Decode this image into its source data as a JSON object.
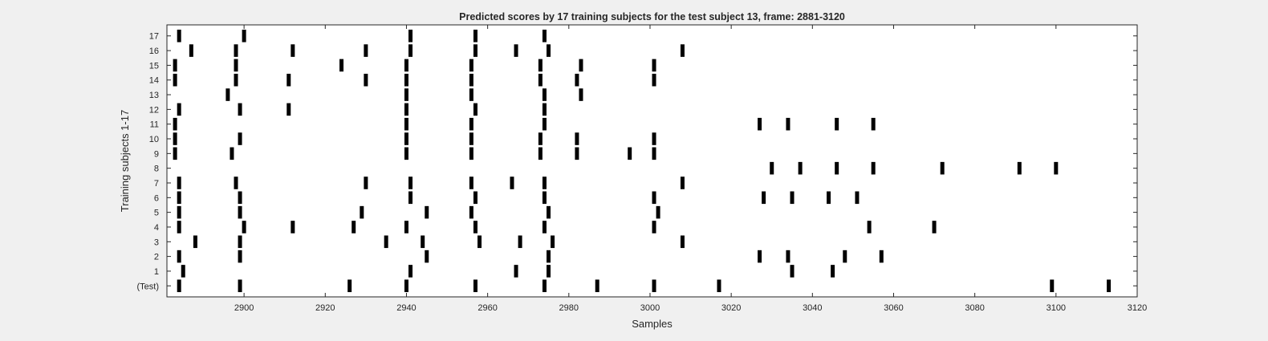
{
  "chart_data": {
    "type": "scatter",
    "marker": "vertical-bar",
    "title": "Predicted scores by 17 training subjects for the test subject 13, frame: 2881-3120",
    "xlabel": "Samples",
    "ylabel": "Training subjects 1-17",
    "xlim": [
      2881,
      3120
    ],
    "xticks": [
      2900,
      2920,
      2940,
      2960,
      2980,
      3000,
      3020,
      3040,
      3060,
      3080,
      3100,
      3120
    ],
    "ytick_labels": [
      "(Test)",
      "1",
      "2",
      "3",
      "4",
      "5",
      "6",
      "7",
      "8",
      "9",
      "10",
      "11",
      "12",
      "13",
      "14",
      "15",
      "16",
      "17"
    ],
    "grid": false,
    "mark_color": "#000000",
    "rows": [
      {
        "label": "(Test)",
        "x": [
          2884,
          2899,
          2926,
          2940,
          2957,
          2974,
          2987,
          3001,
          3017,
          3099,
          3113
        ]
      },
      {
        "label": "1",
        "x": [
          2885,
          2941,
          2967,
          2975,
          3035,
          3045
        ]
      },
      {
        "label": "2",
        "x": [
          2884,
          2899,
          2945,
          2975,
          3027,
          3034,
          3048,
          3057
        ]
      },
      {
        "label": "3",
        "x": [
          2888,
          2899,
          2935,
          2944,
          2958,
          2968,
          2976,
          3008
        ]
      },
      {
        "label": "4",
        "x": [
          2884,
          2900,
          2912,
          2927,
          2940,
          2957,
          2974,
          3001,
          3054,
          3070
        ]
      },
      {
        "label": "5",
        "x": [
          2884,
          2899,
          2929,
          2945,
          2956,
          2975,
          3002
        ]
      },
      {
        "label": "6",
        "x": [
          2884,
          2899,
          2941,
          2957,
          2974,
          3001,
          3028,
          3035,
          3044,
          3051
        ]
      },
      {
        "label": "7",
        "x": [
          2884,
          2898,
          2930,
          2941,
          2956,
          2966,
          2974,
          3008
        ]
      },
      {
        "label": "8",
        "x": [
          3030,
          3037,
          3046,
          3055,
          3072,
          3091,
          3100
        ]
      },
      {
        "label": "9",
        "x": [
          2883,
          2897,
          2940,
          2956,
          2973,
          2982,
          2995,
          3001
        ]
      },
      {
        "label": "10",
        "x": [
          2883,
          2899,
          2940,
          2956,
          2973,
          2982,
          3001
        ]
      },
      {
        "label": "11",
        "x": [
          2883,
          2940,
          2956,
          2974,
          3027,
          3034,
          3046,
          3055
        ]
      },
      {
        "label": "12",
        "x": [
          2884,
          2899,
          2911,
          2940,
          2957,
          2974
        ]
      },
      {
        "label": "13",
        "x": [
          2896,
          2940,
          2956,
          2974,
          2983
        ]
      },
      {
        "label": "14",
        "x": [
          2883,
          2898,
          2911,
          2930,
          2940,
          2956,
          2973,
          2982,
          3001
        ]
      },
      {
        "label": "15",
        "x": [
          2883,
          2898,
          2924,
          2940,
          2956,
          2973,
          2983,
          3001
        ]
      },
      {
        "label": "16",
        "x": [
          2887,
          2898,
          2912,
          2930,
          2941,
          2957,
          2967,
          2975,
          3008
        ]
      },
      {
        "label": "17",
        "x": [
          2884,
          2900,
          2941,
          2957,
          2974
        ]
      }
    ]
  }
}
